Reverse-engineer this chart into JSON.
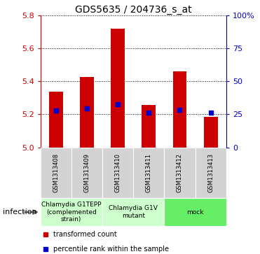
{
  "title": "GDS5635 / 204736_s_at",
  "samples": [
    "GSM1313408",
    "GSM1313409",
    "GSM1313410",
    "GSM1313411",
    "GSM1313412",
    "GSM1313413"
  ],
  "bar_tops": [
    5.335,
    5.425,
    5.72,
    5.255,
    5.46,
    5.185
  ],
  "bar_base": 5.0,
  "percentile_values": [
    5.222,
    5.235,
    5.26,
    5.21,
    5.228,
    5.208
  ],
  "ylim": [
    5.0,
    5.8
  ],
  "yticks_left": [
    5.0,
    5.2,
    5.4,
    5.6,
    5.8
  ],
  "yticks_right_pct": [
    "0",
    "25",
    "50",
    "75",
    "100%"
  ],
  "yticks_right_vals": [
    5.0,
    5.2,
    5.4,
    5.6,
    5.8
  ],
  "bar_color": "#cc0000",
  "percentile_color": "#0000cc",
  "left_axis_color": "#cc0000",
  "right_axis_color": "#0000cc",
  "group_configs": [
    {
      "start": 0,
      "end": 1,
      "label": "Chlamydia G1TEPP\n(complemented\nstrain)",
      "color": "#ccffcc"
    },
    {
      "start": 2,
      "end": 3,
      "label": "Chlamydia G1V\nmutant",
      "color": "#ccffcc"
    },
    {
      "start": 4,
      "end": 5,
      "label": "mock",
      "color": "#66ee66"
    }
  ],
  "infection_label": "infection",
  "legend_items": [
    {
      "label": "transformed count",
      "color": "#cc0000"
    },
    {
      "label": "percentile rank within the sample",
      "color": "#0000cc"
    }
  ]
}
